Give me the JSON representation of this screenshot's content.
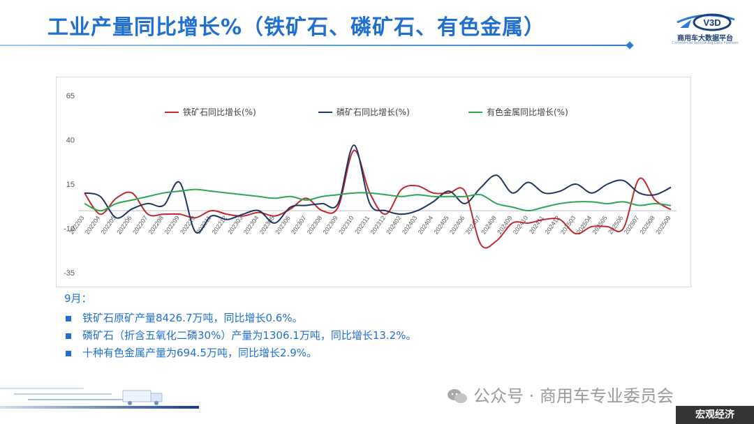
{
  "header": {
    "title": "工业产量同比增长%（铁矿石、磷矿石、有色金属）",
    "logo_mark": "V3D",
    "logo_name": "商用车大数据平台",
    "logo_tagline": "Commercial Vehicle Big Data Platform"
  },
  "chart_data": {
    "type": "line",
    "title": "",
    "xlabel": "",
    "ylabel": "",
    "ylim": [
      -35,
      65
    ],
    "yticks": [
      65,
      40,
      15,
      -10,
      -35
    ],
    "legend_position": "top",
    "grid": false,
    "categories": [
      "202203",
      "202204",
      "202205",
      "202206",
      "202207",
      "202208",
      "202209",
      "202210",
      "202211",
      "202212",
      "202303",
      "202304",
      "202305",
      "202306",
      "202307",
      "202308",
      "202309",
      "202310",
      "202311",
      "202312",
      "202402",
      "202403",
      "202404",
      "202405",
      "202406",
      "202407",
      "202408",
      "202409",
      "202410",
      "202411",
      "202412",
      "202503",
      "202504",
      "202505",
      "202506",
      "202507",
      "202508",
      "202509"
    ],
    "series": [
      {
        "name": "铁矿石同比增长(%)",
        "color": "#c0282d",
        "values": [
          10,
          -2,
          7,
          10,
          -2,
          -2,
          -2,
          -4,
          0,
          -2,
          -3,
          -1,
          -3,
          1,
          7,
          0,
          2,
          34,
          10,
          -2,
          12,
          14,
          10,
          10,
          11,
          -19,
          -17,
          -7,
          -7,
          -5,
          -5,
          -13,
          -9,
          -9,
          -10,
          18,
          6,
          0.6
        ]
      },
      {
        "name": "磷矿石同比增长(%)",
        "color": "#1c3461",
        "values": [
          10,
          8,
          -4,
          1,
          4,
          3,
          16,
          -12,
          -3,
          -5,
          -2,
          0,
          -7,
          2,
          3,
          4,
          4,
          37,
          4,
          0,
          -2,
          0,
          5,
          11,
          4,
          13,
          20,
          10,
          16,
          10,
          11,
          15,
          10,
          15,
          17,
          10,
          9,
          13.2
        ]
      },
      {
        "name": "有色金属同比增长(%)",
        "color": "#2aa84f",
        "values": [
          4,
          0,
          4,
          6,
          8,
          10,
          11,
          12,
          11,
          10,
          9,
          8,
          7,
          8,
          6,
          8,
          9,
          10,
          10,
          9,
          8,
          9,
          8,
          8,
          8,
          9,
          4,
          2,
          0,
          2,
          4,
          5,
          5,
          4,
          5,
          3,
          4,
          2.9
        ]
      }
    ]
  },
  "notes": {
    "month": "9月：",
    "items": [
      "铁矿石原矿产量8426.7万吨，同比增长0.6%。",
      "磷矿石（折含五氧化二磷30%）产量为1306.1万吨，同比增长13.2%。",
      "十种有色金属产量为694.5万吨，同比增长2.9%。"
    ]
  },
  "footer": {
    "wechat_text": "公众号 · 商用车专业委员会",
    "tag": "宏观经济"
  }
}
